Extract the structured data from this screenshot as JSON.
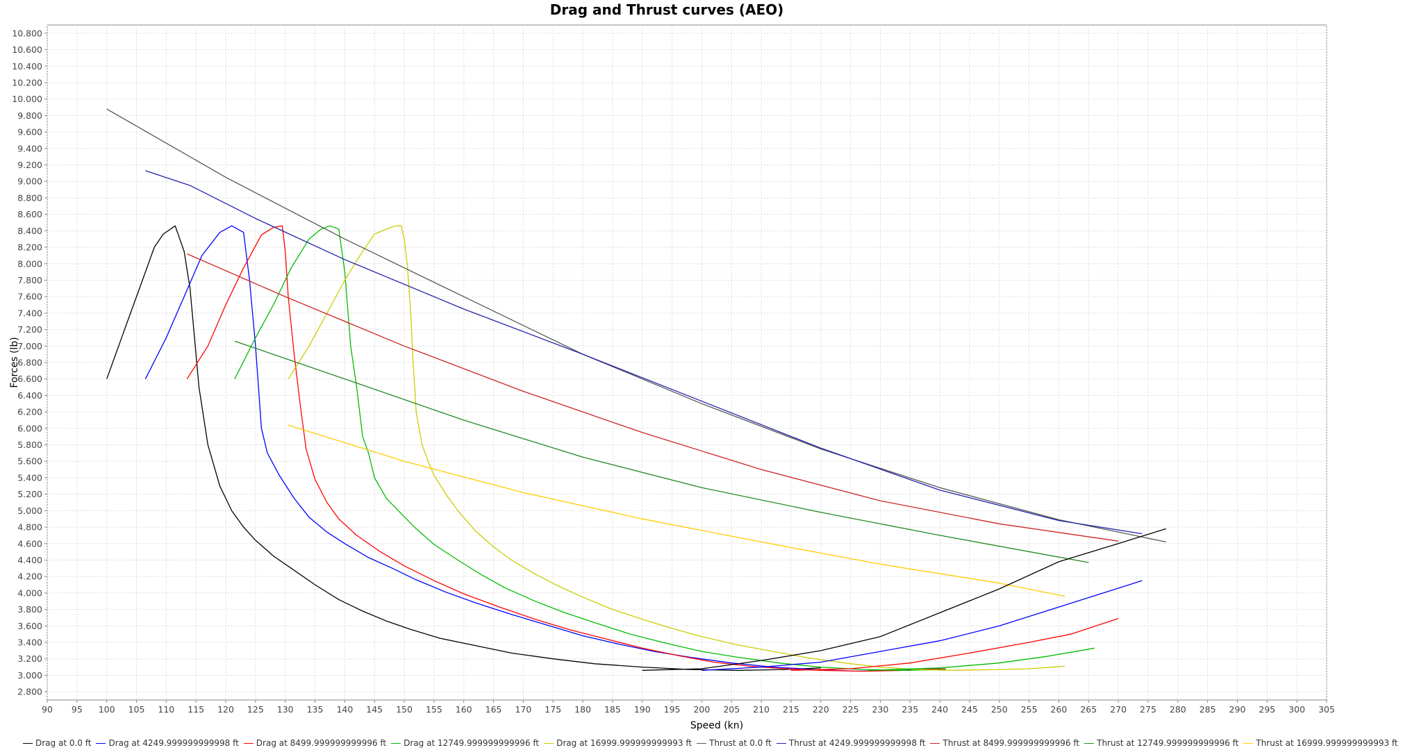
{
  "chart_data": {
    "type": "line",
    "title": "Drag and Thrust curves (AEO)",
    "xlabel": "Speed (kn)",
    "ylabel": "Forces (lb)",
    "xlim": [
      90,
      305
    ],
    "ylim": [
      2700,
      10900
    ],
    "x_ticks": [
      90,
      95,
      100,
      105,
      110,
      115,
      120,
      125,
      130,
      135,
      140,
      145,
      150,
      155,
      160,
      165,
      170,
      175,
      180,
      185,
      190,
      195,
      200,
      205,
      210,
      215,
      220,
      225,
      230,
      235,
      240,
      245,
      250,
      255,
      260,
      265,
      270,
      275,
      280,
      285,
      290,
      295,
      300,
      305
    ],
    "y_ticks": [
      2800,
      3000,
      3200,
      3400,
      3600,
      3800,
      4000,
      4200,
      4400,
      4600,
      4800,
      5000,
      5200,
      5400,
      5600,
      5800,
      6000,
      6200,
      6400,
      6600,
      6800,
      7000,
      7200,
      7400,
      7600,
      7800,
      8000,
      8200,
      8400,
      8600,
      8800,
      9000,
      9200,
      9400,
      9600,
      9800,
      10000,
      10200,
      10400,
      10600,
      10800
    ],
    "y_tick_labels": [
      "2.800",
      "3.000",
      "3.200",
      "3.400",
      "3.600",
      "3.800",
      "4.000",
      "4.200",
      "4.400",
      "4.600",
      "4.800",
      "5.000",
      "5.200",
      "5.400",
      "5.600",
      "5.800",
      "6.000",
      "6.200",
      "6.400",
      "6.600",
      "6.800",
      "7.000",
      "7.200",
      "7.400",
      "7.600",
      "7.800",
      "8.000",
      "8.200",
      "8.400",
      "8.600",
      "8.800",
      "9.000",
      "9.200",
      "9.400",
      "9.600",
      "9.800",
      "10.000",
      "10.200",
      "10.400",
      "10.600",
      "10.800"
    ],
    "grid": true,
    "legend_position": "bottom",
    "series": [
      {
        "name": "Drag at 0.0 ft",
        "color": "#000000",
        "points": [
          [
            100,
            6600
          ],
          [
            102,
            7000
          ],
          [
            104,
            7400
          ],
          [
            106,
            7800
          ],
          [
            108,
            8200
          ],
          [
            109.5,
            8360
          ],
          [
            111.5,
            8460
          ],
          [
            113,
            8150
          ],
          [
            114,
            7700
          ],
          [
            115.5,
            6500
          ],
          [
            117,
            5800
          ],
          [
            119,
            5300
          ],
          [
            121,
            5000
          ],
          [
            123,
            4800
          ],
          [
            125,
            4640
          ],
          [
            128,
            4450
          ],
          [
            131,
            4300
          ],
          [
            135,
            4100
          ],
          [
            139,
            3920
          ],
          [
            143,
            3780
          ],
          [
            147,
            3660
          ],
          [
            151,
            3560
          ],
          [
            156,
            3450
          ],
          [
            162,
            3360
          ],
          [
            168,
            3270
          ],
          [
            175,
            3200
          ],
          [
            182,
            3140
          ],
          [
            190,
            3100
          ],
          [
            198,
            3070
          ],
          [
            206,
            3060
          ],
          [
            214,
            3070
          ],
          [
            220,
            3090
          ]
        ]
      },
      {
        "name": "Drag at 4249.999999999998 ft",
        "color": "#0000ff",
        "points": [
          [
            106.5,
            6600
          ],
          [
            110,
            7100
          ],
          [
            113,
            7600
          ],
          [
            116,
            8100
          ],
          [
            119,
            8380
          ],
          [
            121,
            8460
          ],
          [
            123,
            8380
          ],
          [
            124,
            7800
          ],
          [
            125,
            7000
          ],
          [
            126,
            6000
          ],
          [
            127,
            5700
          ],
          [
            129,
            5430
          ],
          [
            131.5,
            5150
          ],
          [
            134,
            4920
          ],
          [
            137,
            4740
          ],
          [
            140,
            4600
          ],
          [
            144,
            4430
          ],
          [
            148,
            4300
          ],
          [
            152,
            4160
          ],
          [
            157,
            4010
          ],
          [
            162,
            3880
          ],
          [
            168,
            3740
          ],
          [
            174,
            3610
          ],
          [
            180,
            3480
          ],
          [
            186,
            3380
          ],
          [
            192,
            3290
          ],
          [
            198,
            3220
          ],
          [
            205,
            3150
          ],
          [
            212,
            3100
          ],
          [
            219,
            3070
          ],
          [
            226,
            3050
          ],
          [
            233,
            3060
          ],
          [
            240,
            3080
          ]
        ]
      },
      {
        "name": "Drag at 8499.999999999996 ft",
        "color": "#ff0000",
        "points": [
          [
            113.5,
            6600
          ],
          [
            117,
            7000
          ],
          [
            120,
            7500
          ],
          [
            123,
            7950
          ],
          [
            126,
            8350
          ],
          [
            128,
            8440
          ],
          [
            129.5,
            8460
          ],
          [
            130,
            8150
          ],
          [
            130.5,
            7600
          ],
          [
            131.5,
            6900
          ],
          [
            132.5,
            6300
          ],
          [
            133.5,
            5750
          ],
          [
            135,
            5380
          ],
          [
            137,
            5100
          ],
          [
            139,
            4900
          ],
          [
            142,
            4700
          ],
          [
            146,
            4500
          ],
          [
            150,
            4330
          ],
          [
            155,
            4150
          ],
          [
            160,
            3990
          ],
          [
            166,
            3830
          ],
          [
            172,
            3680
          ],
          [
            178,
            3550
          ],
          [
            184,
            3440
          ],
          [
            190,
            3330
          ],
          [
            196,
            3240
          ],
          [
            202,
            3160
          ],
          [
            208,
            3110
          ],
          [
            214,
            3080
          ],
          [
            220,
            3060
          ],
          [
            227,
            3050
          ],
          [
            234,
            3060
          ],
          [
            241,
            3080
          ]
        ]
      },
      {
        "name": "Drag at 12749.999999999996 ft",
        "color": "#00bb00",
        "points": [
          [
            121.5,
            6600
          ],
          [
            125,
            7100
          ],
          [
            128,
            7500
          ],
          [
            131,
            7950
          ],
          [
            134,
            8300
          ],
          [
            136,
            8420
          ],
          [
            137.5,
            8460
          ],
          [
            139,
            8420
          ],
          [
            140,
            7900
          ],
          [
            141,
            7000
          ],
          [
            142,
            6500
          ],
          [
            143,
            5900
          ],
          [
            144,
            5700
          ],
          [
            145,
            5400
          ],
          [
            147,
            5150
          ],
          [
            149,
            5000
          ],
          [
            152,
            4780
          ],
          [
            155,
            4590
          ],
          [
            159,
            4400
          ],
          [
            163,
            4220
          ],
          [
            167,
            4060
          ],
          [
            172,
            3900
          ],
          [
            177,
            3760
          ],
          [
            182,
            3640
          ],
          [
            188,
            3500
          ],
          [
            194,
            3390
          ],
          [
            200,
            3290
          ],
          [
            206,
            3220
          ],
          [
            213,
            3150
          ],
          [
            220,
            3100
          ],
          [
            227,
            3070
          ],
          [
            234,
            3060
          ],
          [
            241,
            3070
          ]
        ]
      },
      {
        "name": "Drag at 16999.999999999993 ft",
        "color": "#cccc00",
        "points": [
          [
            130.5,
            6600
          ],
          [
            134,
            7000
          ],
          [
            137,
            7400
          ],
          [
            140,
            7800
          ],
          [
            143,
            8150
          ],
          [
            145,
            8360
          ],
          [
            147,
            8420
          ],
          [
            148.5,
            8460
          ],
          [
            149.5,
            8460
          ],
          [
            150,
            8300
          ],
          [
            150.5,
            8000
          ],
          [
            151,
            7500
          ],
          [
            151.5,
            6800
          ],
          [
            152,
            6200
          ],
          [
            153,
            5800
          ],
          [
            154,
            5600
          ],
          [
            155,
            5430
          ],
          [
            157,
            5200
          ],
          [
            159,
            5000
          ],
          [
            162,
            4750
          ],
          [
            165,
            4560
          ],
          [
            168,
            4400
          ],
          [
            172,
            4230
          ],
          [
            176,
            4080
          ],
          [
            180,
            3950
          ],
          [
            185,
            3800
          ],
          [
            190,
            3680
          ],
          [
            195,
            3570
          ],
          [
            200,
            3470
          ],
          [
            206,
            3370
          ],
          [
            212,
            3290
          ],
          [
            218,
            3210
          ],
          [
            224,
            3150
          ],
          [
            230,
            3100
          ],
          [
            236,
            3070
          ],
          [
            242,
            3060
          ]
        ]
      },
      {
        "name": "Thrust at 0.0 ft",
        "color": "#555555",
        "points": [
          [
            100,
            9880
          ],
          [
            120,
            9050
          ],
          [
            140,
            8300
          ],
          [
            160,
            7600
          ],
          [
            180,
            6900
          ],
          [
            200,
            6300
          ],
          [
            220,
            5750
          ],
          [
            240,
            5280
          ],
          [
            260,
            4890
          ],
          [
            278,
            4620
          ]
        ]
      },
      {
        "name": "Thrust at 4249.999999999998 ft",
        "color": "#2222aa",
        "points": [
          [
            106.5,
            9130
          ],
          [
            114,
            8950
          ],
          [
            125,
            8550
          ],
          [
            140,
            8050
          ],
          [
            160,
            7450
          ],
          [
            180,
            6900
          ],
          [
            200,
            6330
          ],
          [
            220,
            5760
          ],
          [
            240,
            5250
          ],
          [
            260,
            4880
          ],
          [
            274,
            4720
          ]
        ]
      },
      {
        "name": "Thrust at 8499.999999999996 ft",
        "color": "#cc2222",
        "points": [
          [
            113.5,
            8120
          ],
          [
            130,
            7600
          ],
          [
            150,
            7000
          ],
          [
            170,
            6450
          ],
          [
            190,
            5950
          ],
          [
            210,
            5500
          ],
          [
            230,
            5120
          ],
          [
            250,
            4840
          ],
          [
            270,
            4630
          ]
        ]
      },
      {
        "name": "Thrust at 12749.999999999996 ft",
        "color": "#228822",
        "points": [
          [
            121.5,
            7060
          ],
          [
            140,
            6600
          ],
          [
            160,
            6100
          ],
          [
            180,
            5650
          ],
          [
            200,
            5280
          ],
          [
            220,
            4980
          ],
          [
            240,
            4700
          ],
          [
            265,
            4370
          ]
        ]
      },
      {
        "name": "Thrust at 16999.999999999993 ft",
        "color": "#ffcc00",
        "points": [
          [
            130.5,
            6040
          ],
          [
            150,
            5600
          ],
          [
            170,
            5220
          ],
          [
            190,
            4900
          ],
          [
            210,
            4620
          ],
          [
            230,
            4350
          ],
          [
            250,
            4120
          ],
          [
            261,
            3960
          ]
        ]
      }
    ],
    "extra_curves": [
      {
        "color": "#000000",
        "points": [
          [
            190,
            3060
          ],
          [
            200,
            3080
          ],
          [
            210,
            3180
          ],
          [
            220,
            3300
          ],
          [
            230,
            3470
          ],
          [
            240,
            3760
          ],
          [
            250,
            4050
          ],
          [
            260,
            4380
          ],
          [
            270,
            4600
          ],
          [
            278,
            4780
          ]
        ]
      },
      {
        "color": "#0000ff",
        "points": [
          [
            200,
            3060
          ],
          [
            210,
            3100
          ],
          [
            220,
            3160
          ],
          [
            230,
            3290
          ],
          [
            240,
            3420
          ],
          [
            250,
            3600
          ],
          [
            260,
            3830
          ],
          [
            274,
            4150
          ]
        ]
      },
      {
        "color": "#ff0000",
        "points": [
          [
            215,
            3060
          ],
          [
            225,
            3080
          ],
          [
            235,
            3150
          ],
          [
            245,
            3270
          ],
          [
            255,
            3400
          ],
          [
            262,
            3500
          ],
          [
            270,
            3690
          ]
        ]
      },
      {
        "color": "#00bb00",
        "points": [
          [
            228,
            3060
          ],
          [
            240,
            3090
          ],
          [
            250,
            3150
          ],
          [
            258,
            3230
          ],
          [
            266,
            3330
          ]
        ]
      },
      {
        "color": "#cccc00",
        "points": [
          [
            242,
            3060
          ],
          [
            250,
            3070
          ],
          [
            255,
            3080
          ],
          [
            261,
            3110
          ]
        ]
      }
    ]
  }
}
